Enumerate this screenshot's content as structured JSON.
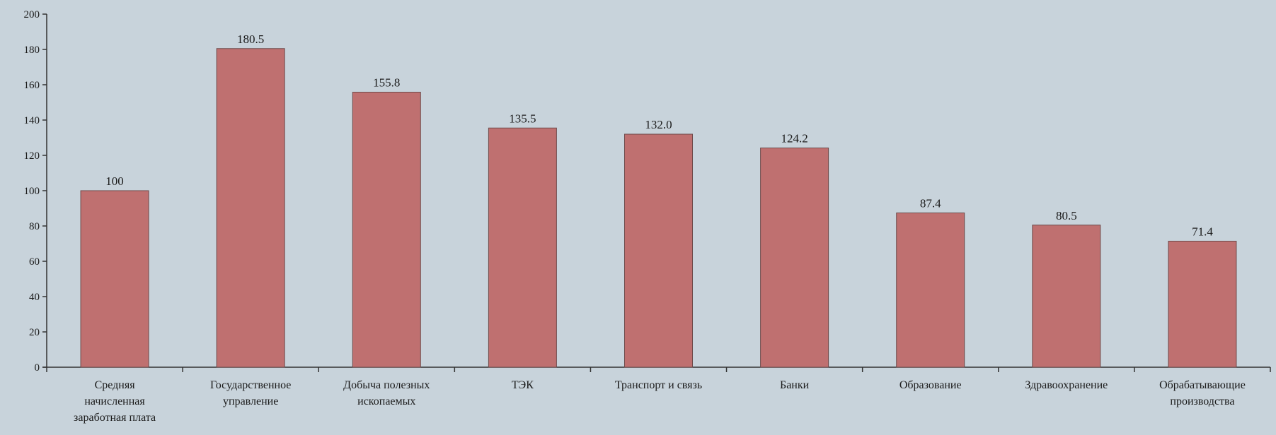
{
  "chart_data": {
    "type": "bar",
    "title": "",
    "xlabel": "",
    "ylabel": "",
    "ylim": [
      0,
      200
    ],
    "y_ticks": [
      0,
      20,
      40,
      60,
      80,
      100,
      120,
      140,
      160,
      180,
      200
    ],
    "grid": false,
    "categories": [
      [
        "Средняя",
        "начисленная",
        "заработная плата"
      ],
      [
        "Государственное",
        "управление"
      ],
      [
        "Добыча полезных",
        "ископаемых"
      ],
      [
        "ТЭК"
      ],
      [
        "Транспорт и связь"
      ],
      [
        "Банки"
      ],
      [
        "Образование"
      ],
      [
        "Здравоохранение"
      ],
      [
        "Обрабатывающие",
        "производства"
      ]
    ],
    "values": [
      100,
      180.5,
      155.8,
      135.5,
      132.0,
      124.2,
      87.4,
      80.5,
      71.4
    ],
    "data_labels": [
      "100",
      "180.5",
      "155.8",
      "135.5",
      "132.0",
      "124.2",
      "87.4",
      "80.5",
      "71.4"
    ],
    "colors": {
      "bar": "#bf7070",
      "bar_stroke": "#6e4a4a",
      "axis": "#333333",
      "background": "#c8d3db"
    }
  }
}
